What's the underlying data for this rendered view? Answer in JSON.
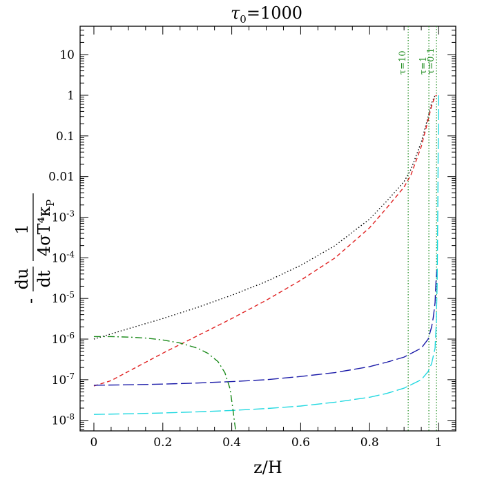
{
  "chart_data": {
    "type": "line",
    "title": "τ₀=1000",
    "title_prefix": "τ",
    "title_subscript": "0",
    "title_suffix": "=1000",
    "xlabel": "z/H",
    "ylabel": "- du/dt · 1/(4σT⁴κP)",
    "ylabel_parts": {
      "sign": "-",
      "num_left": "du",
      "den_left": "dt",
      "num_right": "1",
      "den_right": "4σT⁴κ",
      "den_right_sub": "P"
    },
    "xlim": [
      -0.04,
      1.05
    ],
    "ylim": [
      5.5e-09,
      50
    ],
    "yscale": "log",
    "grid": false,
    "legend": "none",
    "x_ticks": [
      {
        "value": 0,
        "label": "0"
      },
      {
        "value": 0.2,
        "label": "0.2"
      },
      {
        "value": 0.4,
        "label": "0.4"
      },
      {
        "value": 0.6,
        "label": "0.6"
      },
      {
        "value": 0.8,
        "label": "0.8"
      },
      {
        "value": 1,
        "label": "1"
      }
    ],
    "y_ticks": [
      {
        "value": 10,
        "label": "10"
      },
      {
        "value": 1,
        "label": "1"
      },
      {
        "value": 0.1,
        "label": "0.1"
      },
      {
        "value": 0.01,
        "label": "0.01"
      },
      {
        "value": 0.001,
        "base": "10",
        "exp": "-3"
      },
      {
        "value": 0.0001,
        "base": "10",
        "exp": "-4"
      },
      {
        "value": 1e-05,
        "base": "10",
        "exp": "-5"
      },
      {
        "value": 1e-06,
        "base": "10",
        "exp": "-6"
      },
      {
        "value": 1e-07,
        "base": "10",
        "exp": "-7"
      },
      {
        "value": 1e-08,
        "base": "10",
        "exp": "-8"
      }
    ],
    "reference_lines": [
      {
        "x": 0.912,
        "label": "τ=10",
        "color": "#1a8a1a"
      },
      {
        "x": 0.972,
        "label": "τ=1",
        "color": "#1a8a1a"
      },
      {
        "x": 0.994,
        "label": "τ=0.1",
        "color": "#1a8a1a"
      }
    ],
    "series": [
      {
        "color": "#000000",
        "style": "dotted",
        "x": [
          0,
          0.1,
          0.2,
          0.3,
          0.4,
          0.5,
          0.6,
          0.7,
          0.8,
          0.85,
          0.9,
          0.92,
          0.95,
          0.97,
          0.98,
          0.99
        ],
        "y": [
          1e-06,
          1.8e-06,
          3.2e-06,
          6e-06,
          1.2e-05,
          2.6e-05,
          6.5e-05,
          0.0002,
          0.0009,
          0.0025,
          0.0075,
          0.015,
          0.07,
          0.3,
          0.65,
          1.0
        ]
      },
      {
        "color": "#e02020",
        "style": "dashed",
        "x": [
          0,
          0.05,
          0.1,
          0.2,
          0.3,
          0.4,
          0.5,
          0.6,
          0.7,
          0.8,
          0.85,
          0.9,
          0.92,
          0.95,
          0.97,
          0.98,
          0.99,
          0.995
        ],
        "y": [
          7e-08,
          9.5e-08,
          1.6e-07,
          4.5e-07,
          1.2e-06,
          3.2e-06,
          9e-06,
          2.8e-05,
          0.0001,
          0.00055,
          0.0017,
          0.0055,
          0.011,
          0.055,
          0.25,
          0.55,
          0.95,
          1.0
        ]
      },
      {
        "color": "#1a1aa8",
        "style": "long-dashed",
        "x": [
          0,
          0.1,
          0.2,
          0.3,
          0.4,
          0.5,
          0.6,
          0.7,
          0.8,
          0.85,
          0.9,
          0.95,
          0.97,
          0.98,
          0.985,
          0.99,
          0.993,
          0.995
        ],
        "y": [
          7.3e-08,
          7.5e-08,
          7.8e-08,
          8.3e-08,
          9e-08,
          1e-07,
          1.2e-07,
          1.5e-07,
          2.1e-07,
          2.7e-07,
          3.6e-07,
          6e-07,
          1e-06,
          2e-06,
          3.5e-06,
          8e-06,
          3e-05,
          5e-05
        ]
      },
      {
        "color": "#20d8e0",
        "style": "long-dashed",
        "x": [
          0,
          0.1,
          0.2,
          0.3,
          0.4,
          0.5,
          0.6,
          0.7,
          0.8,
          0.85,
          0.9,
          0.95,
          0.97,
          0.98,
          0.99,
          0.993,
          0.996,
          0.998,
          1.0
        ],
        "y": [
          1.4e-08,
          1.45e-08,
          1.52e-08,
          1.62e-08,
          1.75e-08,
          1.95e-08,
          2.25e-08,
          2.8e-08,
          3.7e-08,
          4.6e-08,
          6.2e-08,
          1e-07,
          1.6e-07,
          2.5e-07,
          6e-07,
          2e-06,
          2e-05,
          0.002,
          1.0
        ]
      },
      {
        "color": "#1a8a1a",
        "style": "dash-dot",
        "x": [
          0,
          0.05,
          0.1,
          0.15,
          0.2,
          0.25,
          0.3,
          0.33,
          0.36,
          0.38,
          0.395,
          0.403,
          0.408,
          0.411,
          0.413
        ],
        "y": [
          1.15e-06,
          1.15e-06,
          1.12e-06,
          1.06e-06,
          9.5e-07,
          8e-07,
          6e-07,
          4.5e-07,
          2.8e-07,
          1.5e-07,
          6e-08,
          2e-08,
          9e-09,
          6e-09,
          5.5e-09
        ]
      }
    ]
  }
}
